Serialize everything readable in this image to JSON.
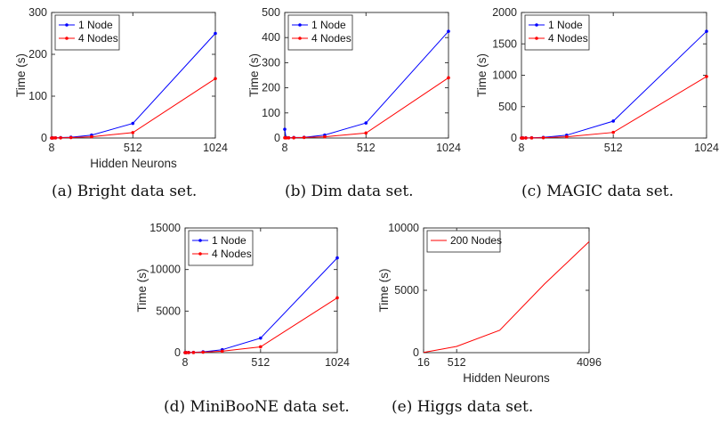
{
  "chart_data": [
    {
      "type": "line",
      "caption": "(a)  Bright data set.",
      "xlabel": "Hidden Neurons",
      "ylabel": "Time (s)",
      "xticks": [
        "8",
        "512",
        "1024"
      ],
      "yticks": [
        "0",
        "100",
        "200",
        "300"
      ],
      "xlim": [
        8,
        1024
      ],
      "ylim": [
        0,
        300
      ],
      "legend_position": "top-left",
      "x": [
        8,
        16,
        32,
        64,
        128,
        256,
        512,
        1024
      ],
      "series": [
        {
          "name": "1 Node",
          "color": "#0000ff",
          "values": [
            0.2,
            0.3,
            0.5,
            1,
            2,
            7,
            35,
            250
          ]
        },
        {
          "name": "4 Nodes",
          "color": "#ff0000",
          "values": [
            0.1,
            0.2,
            0.3,
            0.5,
            1,
            3,
            13,
            142
          ]
        }
      ]
    },
    {
      "type": "line",
      "caption": "(b)  Dim data set.",
      "xlabel": "",
      "ylabel": "Time (s)",
      "xticks": [
        "8",
        "512",
        "1024"
      ],
      "yticks": [
        "0",
        "100",
        "200",
        "300",
        "400",
        "500"
      ],
      "xlim": [
        8,
        1024
      ],
      "ylim": [
        0,
        500
      ],
      "legend_position": "top-left",
      "x": [
        8,
        16,
        32,
        64,
        128,
        256,
        512,
        1024
      ],
      "series": [
        {
          "name": "1 Node",
          "color": "#0000ff",
          "values": [
            35,
            2,
            1,
            2,
            3,
            12,
            60,
            425
          ]
        },
        {
          "name": "4 Nodes",
          "color": "#ff0000",
          "values": [
            1,
            0.5,
            0.8,
            1,
            2,
            5,
            20,
            240
          ]
        }
      ]
    },
    {
      "type": "line",
      "caption": "(c)  MAGIC data set.",
      "xlabel": "",
      "ylabel": "Time (s)",
      "xticks": [
        "8",
        "512",
        "1024"
      ],
      "yticks": [
        "0",
        "500",
        "1000",
        "1500",
        "2000"
      ],
      "xlim": [
        8,
        1024
      ],
      "ylim": [
        0,
        2000
      ],
      "legend_position": "top-left",
      "x": [
        8,
        16,
        32,
        64,
        128,
        256,
        512,
        1024
      ],
      "series": [
        {
          "name": "1 Node",
          "color": "#0000ff",
          "values": [
            1,
            1,
            2,
            4,
            10,
            45,
            270,
            1700
          ]
        },
        {
          "name": "4 Nodes",
          "color": "#ff0000",
          "values": [
            0.5,
            0.5,
            1,
            2,
            5,
            20,
            90,
            980
          ]
        }
      ]
    },
    {
      "type": "line",
      "caption": "(d)  MiniBooNE data set.",
      "xlabel": "",
      "ylabel": "Time (s)",
      "xticks": [
        "8",
        "512",
        "1024"
      ],
      "yticks": [
        "0",
        "5000",
        "10000",
        "15000"
      ],
      "xlim": [
        8,
        1024
      ],
      "ylim": [
        0,
        15000
      ],
      "legend_position": "top-left",
      "x": [
        8,
        16,
        32,
        64,
        128,
        256,
        512,
        1024
      ],
      "series": [
        {
          "name": "1 Node",
          "color": "#0000ff",
          "values": [
            8,
            10,
            20,
            40,
            100,
            350,
            1750,
            11400
          ]
        },
        {
          "name": "4 Nodes",
          "color": "#ff0000",
          "values": [
            4,
            5,
            10,
            20,
            50,
            170,
            700,
            6600
          ]
        }
      ]
    },
    {
      "type": "line",
      "caption": "(e)  Higgs data set.",
      "xlabel": "Hidden Neurons",
      "ylabel": "Time (s)",
      "xticks": [
        "16",
        "512",
        "4096"
      ],
      "yticks": [
        "0",
        "5000",
        "10000"
      ],
      "xlim": [
        16,
        4096
      ],
      "ylim": [
        0,
        10000
      ],
      "legend_position": "top-left",
      "x": [
        16,
        256,
        512,
        1024,
        2048,
        4096
      ],
      "series": [
        {
          "name": "200 Nodes",
          "color": "#ff0000",
          "values": [
            20,
            300,
            500,
            1800,
            5500,
            8900
          ]
        }
      ]
    }
  ]
}
